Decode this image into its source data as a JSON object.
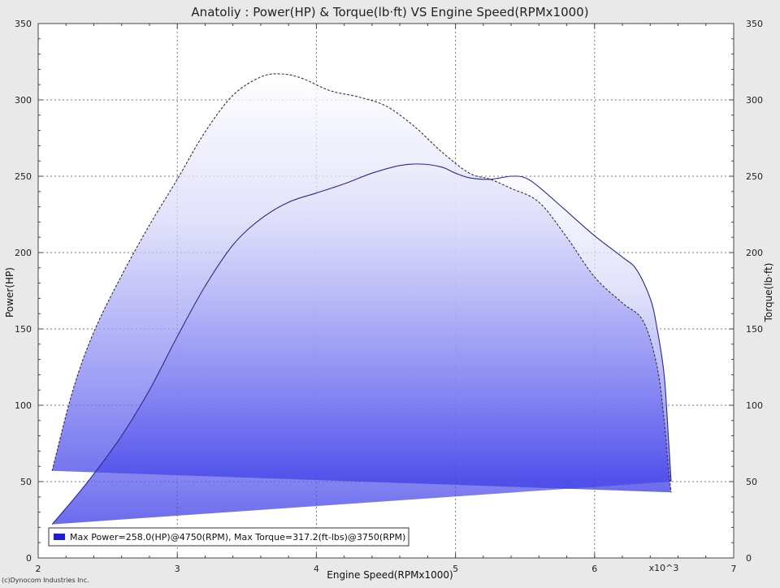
{
  "chart_data": {
    "type": "area",
    "title": "Anatoliy : Power(HP) & Torque(lb·ft) VS Engine Speed(RPMx1000)",
    "xlabel": "Engine Speed(RPMx1000)",
    "ylabel": "Power(HP)",
    "y2label": "Torque(lb·ft)",
    "x_multiplier_label": "x10^3",
    "xlim": [
      2,
      7
    ],
    "ylim": [
      0,
      350
    ],
    "y2lim": [
      0,
      350
    ],
    "x_ticks": [
      "2",
      "3",
      "4",
      "5",
      "6",
      "7"
    ],
    "y_ticks": [
      "0",
      "50",
      "100",
      "150",
      "200",
      "250",
      "300",
      "350"
    ],
    "y2_ticks": [
      "0",
      "50",
      "100",
      "150",
      "200",
      "250",
      "300",
      "350"
    ],
    "grid": true,
    "legend_position": "bottom-left",
    "legend": [
      "Max Power=258.0(HP)@4750(RPM), Max Torque=317.2(ft-lbs)@3750(RPM)"
    ],
    "series": [
      {
        "role": "power",
        "color": "#2a2a8a",
        "line_style": "solid",
        "x": [
          2.1,
          2.25,
          2.4,
          2.6,
          2.8,
          3.0,
          3.2,
          3.4,
          3.6,
          3.8,
          4.0,
          4.2,
          4.4,
          4.6,
          4.75,
          4.9,
          5.0,
          5.1,
          5.25,
          5.4,
          5.5,
          5.6,
          5.8,
          6.0,
          6.2,
          6.3,
          6.4,
          6.45,
          6.5,
          6.53,
          6.55
        ],
        "y": [
          22,
          38,
          55,
          80,
          110,
          145,
          178,
          205,
          222,
          233,
          239,
          245,
          252,
          257,
          258,
          256,
          252,
          249,
          248,
          250,
          249,
          243,
          227,
          211,
          197,
          189,
          170,
          150,
          120,
          80,
          50
        ]
      },
      {
        "role": "torque",
        "color": "#333333",
        "line_style": "dashed",
        "x": [
          2.1,
          2.25,
          2.4,
          2.6,
          2.8,
          3.0,
          3.2,
          3.4,
          3.6,
          3.75,
          3.9,
          4.1,
          4.3,
          4.5,
          4.7,
          4.9,
          5.1,
          5.25,
          5.4,
          5.6,
          5.8,
          6.0,
          6.2,
          6.35,
          6.45,
          6.5,
          6.53,
          6.55
        ],
        "y": [
          57,
          110,
          148,
          185,
          218,
          248,
          279,
          303,
          315,
          317,
          314,
          306,
          302,
          296,
          283,
          266,
          252,
          248,
          242,
          233,
          210,
          184,
          167,
          155,
          125,
          90,
          60,
          43
        ]
      }
    ]
  },
  "footer": "(c)Dynocom Industries Inc.",
  "colors": {
    "background": "#e9e9e9",
    "plot_background": "#ffffff",
    "fill_dark": "#3a3ae8",
    "fill_light": "#ffffff",
    "legend_swatch": "#1f1fd0"
  }
}
